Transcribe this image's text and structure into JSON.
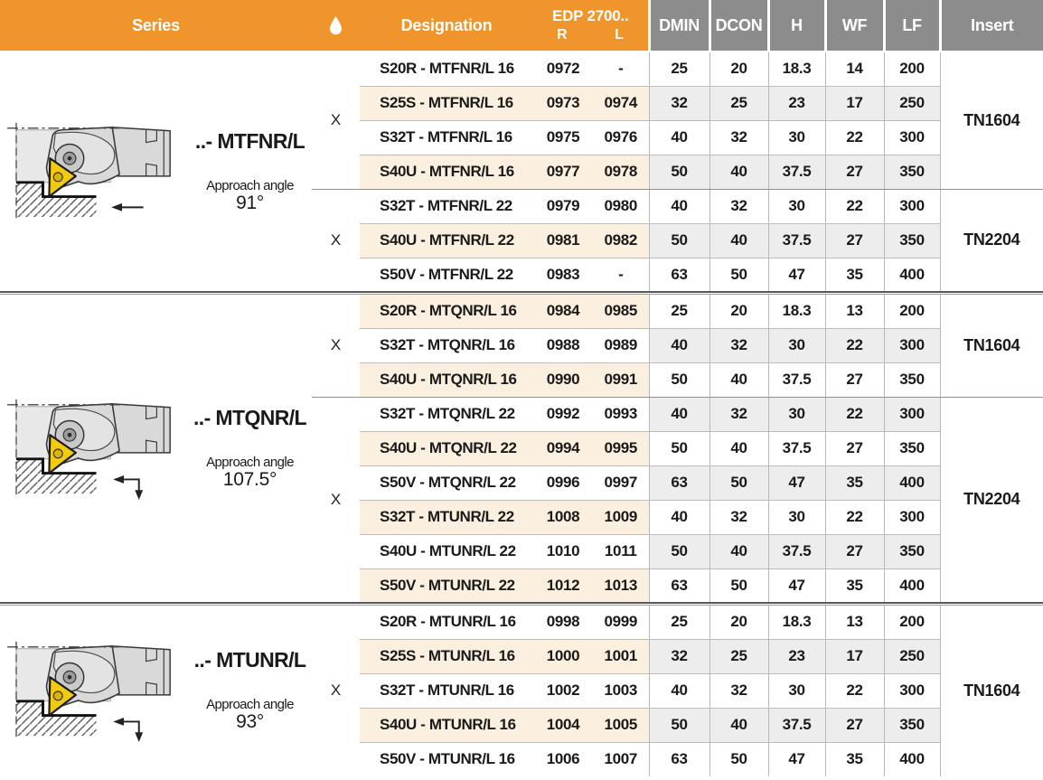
{
  "header": {
    "series": "Series",
    "coolant_icon": "droplet-icon",
    "designation": "Designation",
    "edp_title": "EDP 2700..",
    "edp_r": "R",
    "edp_l": "L",
    "cols": [
      "DMIN",
      "DCON",
      "H",
      "WF",
      "LF"
    ],
    "insert": "Insert"
  },
  "colors": {
    "accent_orange": "#F0942C",
    "header_gray": "#8C8C8C",
    "row_cream": "#FBF0DF",
    "row_gray": "#EDEDED",
    "group_separator": "#57585B",
    "insert_yellow": "#F2CB0E"
  },
  "groups": [
    {
      "series_label": "..- MTFNR/L",
      "approach_label": "Approach angle",
      "approach_angle": "91°",
      "arrow": "left",
      "diagram_icon": "boring-bar-diagram",
      "blocks": [
        {
          "coolant": "X",
          "insert": "TN1604",
          "rows": [
            {
              "d": "S20R - MTFNR/L 16",
              "r": "0972",
              "l": "-",
              "v": [
                "25",
                "20",
                "18.3",
                "14",
                "200"
              ],
              "cream": false,
              "gray": false
            },
            {
              "d": "S25S - MTFNR/L 16",
              "r": "0973",
              "l": "0974",
              "v": [
                "32",
                "25",
                "23",
                "17",
                "250"
              ],
              "cream": true,
              "gray": true
            },
            {
              "d": "S32T - MTFNR/L 16",
              "r": "0975",
              "l": "0976",
              "v": [
                "40",
                "32",
                "30",
                "22",
                "300"
              ],
              "cream": false,
              "gray": false
            },
            {
              "d": "S40U - MTFNR/L 16",
              "r": "0977",
              "l": "0978",
              "v": [
                "50",
                "40",
                "37.5",
                "27",
                "350"
              ],
              "cream": true,
              "gray": true
            }
          ]
        },
        {
          "coolant": "X",
          "insert": "TN2204",
          "rows": [
            {
              "d": "S32T - MTFNR/L 22",
              "r": "0979",
              "l": "0980",
              "v": [
                "40",
                "32",
                "30",
                "22",
                "300"
              ],
              "cream": false,
              "gray": false
            },
            {
              "d": "S40U - MTFNR/L 22",
              "r": "0981",
              "l": "0982",
              "v": [
                "50",
                "40",
                "37.5",
                "27",
                "350"
              ],
              "cream": true,
              "gray": true
            },
            {
              "d": "S50V - MTFNR/L 22",
              "r": "0983",
              "l": "-",
              "v": [
                "63",
                "50",
                "47",
                "35",
                "400"
              ],
              "cream": false,
              "gray": false
            }
          ]
        }
      ]
    },
    {
      "series_label": "..- MTQNR/L",
      "approach_label": "Approach angle",
      "approach_angle": "107.5°",
      "arrow": "left-down",
      "diagram_icon": "boring-bar-diagram",
      "blocks": [
        {
          "coolant": "X",
          "insert": "TN1604",
          "rows": [
            {
              "d": "S20R - MTQNR/L 16",
              "r": "0984",
              "l": "0985",
              "v": [
                "25",
                "20",
                "18.3",
                "13",
                "200"
              ],
              "cream": true,
              "gray": false
            },
            {
              "d": "S32T - MTQNR/L 16",
              "r": "0988",
              "l": "0989",
              "v": [
                "40",
                "32",
                "30",
                "22",
                "300"
              ],
              "cream": false,
              "gray": true
            },
            {
              "d": "S40U - MTQNR/L 16",
              "r": "0990",
              "l": "0991",
              "v": [
                "50",
                "40",
                "37.5",
                "27",
                "350"
              ],
              "cream": true,
              "gray": false
            }
          ]
        },
        {
          "coolant": "X",
          "insert": "TN2204",
          "rows": [
            {
              "d": "S32T - MTQNR/L 22",
              "r": "0992",
              "l": "0993",
              "v": [
                "40",
                "32",
                "30",
                "22",
                "300"
              ],
              "cream": false,
              "gray": true
            },
            {
              "d": "S40U - MTQNR/L 22",
              "r": "0994",
              "l": "0995",
              "v": [
                "50",
                "40",
                "37.5",
                "27",
                "350"
              ],
              "cream": true,
              "gray": false
            },
            {
              "d": "S50V - MTQNR/L 22",
              "r": "0996",
              "l": "0997",
              "v": [
                "63",
                "50",
                "47",
                "35",
                "400"
              ],
              "cream": false,
              "gray": true
            },
            {
              "d": "S32T - MTUNR/L 22",
              "r": "1008",
              "l": "1009",
              "v": [
                "40",
                "32",
                "30",
                "22",
                "300"
              ],
              "cream": true,
              "gray": false
            },
            {
              "d": "S40U - MTUNR/L 22",
              "r": "1010",
              "l": "1011",
              "v": [
                "50",
                "40",
                "37.5",
                "27",
                "350"
              ],
              "cream": false,
              "gray": true
            },
            {
              "d": "S50V - MTUNR/L 22",
              "r": "1012",
              "l": "1013",
              "v": [
                "63",
                "50",
                "47",
                "35",
                "400"
              ],
              "cream": true,
              "gray": false
            }
          ]
        }
      ]
    },
    {
      "series_label": "..- MTUNR/L",
      "approach_label": "Approach angle",
      "approach_angle": "93°",
      "arrow": "left-down",
      "diagram_icon": "boring-bar-diagram",
      "blocks": [
        {
          "coolant": "X",
          "insert": "TN1604",
          "rows": [
            {
              "d": "S20R - MTUNR/L 16",
              "r": "0998",
              "l": "0999",
              "v": [
                "25",
                "20",
                "18.3",
                "13",
                "200"
              ],
              "cream": false,
              "gray": false
            },
            {
              "d": "S25S - MTUNR/L 16",
              "r": "1000",
              "l": "1001",
              "v": [
                "32",
                "25",
                "23",
                "17",
                "250"
              ],
              "cream": true,
              "gray": true
            },
            {
              "d": "S32T - MTUNR/L 16",
              "r": "1002",
              "l": "1003",
              "v": [
                "40",
                "32",
                "30",
                "22",
                "300"
              ],
              "cream": false,
              "gray": false
            },
            {
              "d": "S40U - MTUNR/L 16",
              "r": "1004",
              "l": "1005",
              "v": [
                "50",
                "40",
                "37.5",
                "27",
                "350"
              ],
              "cream": true,
              "gray": true
            },
            {
              "d": "S50V - MTUNR/L 16",
              "r": "1006",
              "l": "1007",
              "v": [
                "63",
                "50",
                "47",
                "35",
                "400"
              ],
              "cream": false,
              "gray": false
            }
          ]
        }
      ]
    }
  ]
}
